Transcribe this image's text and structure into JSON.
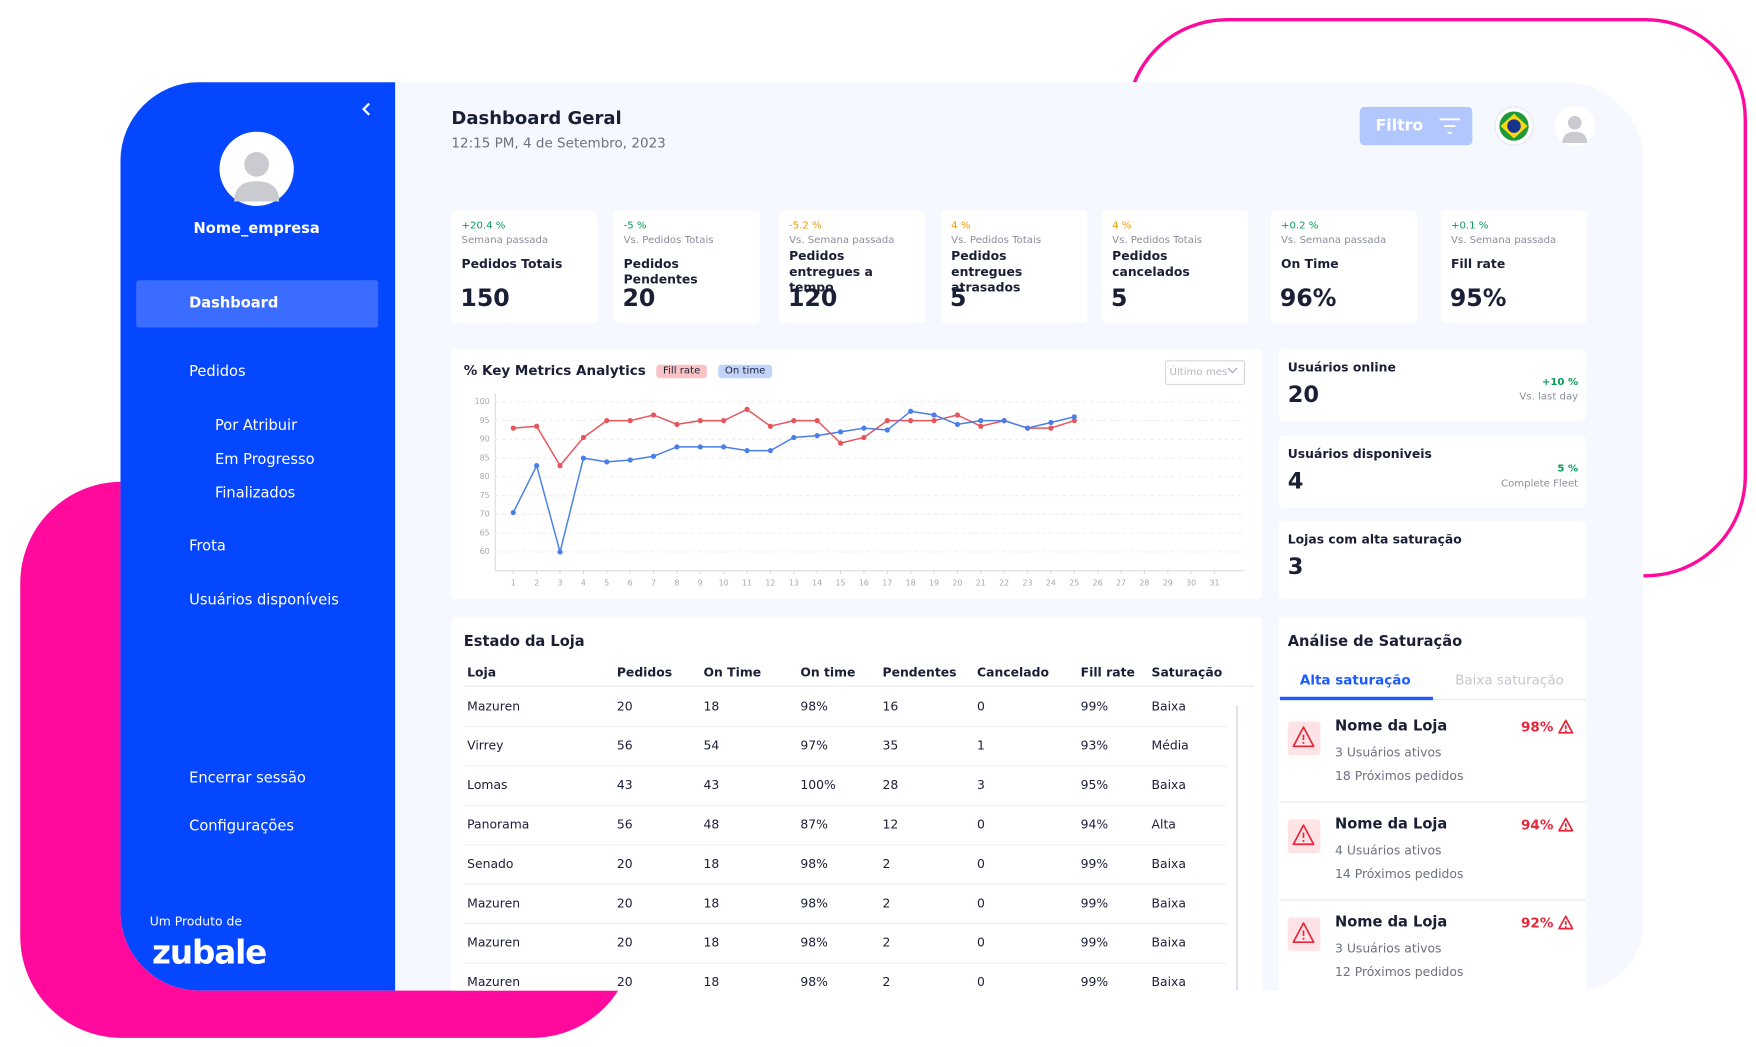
{
  "sidebar": {
    "company": "Nome_empresa",
    "menu": [
      "Dashboard",
      "Pedidos",
      "Por Atribuir",
      "Em Progresso",
      "Finalizados",
      "Frota",
      "Usuários disponíveis"
    ],
    "footer_menu": [
      "Encerrar sessão",
      "Configurações"
    ],
    "product_label": "Um Produto de",
    "brand": "zubale"
  },
  "header": {
    "title": "Dashboard Geral",
    "datetime": "12:15 PM, 4 de Setembro, 2023",
    "filter_button": "Filtro"
  },
  "kpis": [
    {
      "change": "+20.4 %",
      "change_color": "#0a9b5a",
      "compare": "Semana passada",
      "label": "Pedidos Totais",
      "value": "150"
    },
    {
      "change": "-5 %",
      "change_color": "#0a9b5a",
      "compare": "Vs. Pedidos Totais",
      "label": "Pedidos Pendentes",
      "value": "20"
    },
    {
      "change": "-5.2 %",
      "change_color": "#f29a00",
      "compare": "Vs. Semana passada",
      "label": "Pedidos entregues a tempo",
      "value": "120"
    },
    {
      "change": "4 %",
      "change_color": "#f29a00",
      "compare": "Vs. Pedidos Totais",
      "label": "Pedidos entregues atrasados",
      "value": "5"
    },
    {
      "change": "4 %",
      "change_color": "#f29a00",
      "compare": "Vs. Pedidos Totais",
      "label": "Pedidos cancelados",
      "value": "5"
    },
    {
      "change": "+0.2 %",
      "change_color": "#0a9b5a",
      "compare": "Vs. Semana passada",
      "label": "On Time",
      "value": "96%"
    },
    {
      "change": "+0.1 %",
      "change_color": "#0a9b5a",
      "compare": "Vs. Semana passada",
      "label": "Fill rate",
      "value": "95%"
    }
  ],
  "chart_data": {
    "type": "line",
    "title": "% Key Metrics Analytics",
    "x": [
      1,
      2,
      3,
      4,
      5,
      6,
      7,
      8,
      9,
      10,
      11,
      12,
      13,
      14,
      15,
      16,
      17,
      18,
      19,
      20,
      21,
      22,
      23,
      24,
      25,
      26,
      27,
      28,
      29,
      30,
      31
    ],
    "xlim": [
      1,
      31
    ],
    "xticks": [
      1,
      2,
      3,
      4,
      5,
      6,
      7,
      8,
      9,
      10,
      11,
      12,
      13,
      14,
      15,
      16,
      17,
      18,
      19,
      20,
      21,
      22,
      23,
      24,
      25,
      26,
      27,
      28,
      29,
      30,
      31
    ],
    "ylim": [
      55,
      100
    ],
    "yticks": [
      60,
      65,
      70,
      75,
      80,
      85,
      90,
      95,
      100
    ],
    "grid": true,
    "series": [
      {
        "name": "Fill rate",
        "color": "#e8545c",
        "legend_bg": "#f9c3c6",
        "values": [
          93,
          93.5,
          83,
          90.5,
          95,
          95,
          96.5,
          94,
          95,
          95,
          98,
          93.5,
          95,
          95,
          89,
          90.5,
          95,
          95,
          95,
          96.5,
          93.5,
          95,
          93,
          93,
          95,
          null,
          null,
          null,
          null,
          null,
          null
        ]
      },
      {
        "name": "On time",
        "color": "#4a7ee8",
        "legend_bg": "#c3d4fa",
        "values": [
          70.5,
          83,
          60,
          85,
          84,
          84.5,
          85.5,
          88,
          88,
          88,
          87,
          87,
          90.5,
          91,
          92,
          93,
          92.5,
          97.5,
          96.5,
          94,
          95,
          95,
          93,
          94.5,
          96,
          null,
          null,
          null,
          null,
          null,
          null
        ]
      }
    ]
  },
  "chart_controls": {
    "period": "Último mes"
  },
  "side_stats": [
    {
      "label": "Usuários online",
      "value": "20",
      "change": "+10 %",
      "compare": "Vs. last day"
    },
    {
      "label": "Usuários disponiveis",
      "value": "4",
      "change": "5 %",
      "compare": "Complete Fleet"
    },
    {
      "label": "Lojas com alta saturação",
      "value": "3"
    }
  ],
  "table": {
    "title": "Estado da Loja",
    "columns": [
      "Loja",
      "Pedidos",
      "On Time",
      "On time",
      "Pendentes",
      "Cancelado",
      "Fill rate",
      "Saturação"
    ],
    "rows": [
      [
        "Mazuren",
        "20",
        "18",
        "98%",
        "16",
        "0",
        "99%",
        "Baixa"
      ],
      [
        "Virrey",
        "56",
        "54",
        "97%",
        "35",
        "1",
        "93%",
        "Média"
      ],
      [
        "Lomas",
        "43",
        "43",
        "100%",
        "28",
        "3",
        "95%",
        "Baixa"
      ],
      [
        "Panorama",
        "56",
        "48",
        "87%",
        "12",
        "0",
        "94%",
        "Alta"
      ],
      [
        "Senado",
        "20",
        "18",
        "98%",
        "2",
        "0",
        "99%",
        "Baixa"
      ],
      [
        "Mazuren",
        "20",
        "18",
        "98%",
        "2",
        "0",
        "99%",
        "Baixa"
      ],
      [
        "Mazuren",
        "20",
        "18",
        "98%",
        "2",
        "0",
        "99%",
        "Baixa"
      ],
      [
        "Mazuren",
        "20",
        "18",
        "98%",
        "2",
        "0",
        "99%",
        "Baixa"
      ]
    ]
  },
  "saturation": {
    "title": "Análise de Saturação",
    "tabs": [
      "Alta saturação",
      "Baixa saturação"
    ],
    "items": [
      {
        "name": "Nome da Loja",
        "percent": "98%",
        "users": "3 Usuários ativos",
        "orders": "18 Próximos pedidos"
      },
      {
        "name": "Nome da Loja",
        "percent": "94%",
        "users": "4 Usuários ativos",
        "orders": "14 Próximos pedidos"
      },
      {
        "name": "Nome da Loja",
        "percent": "92%",
        "users": "3 Usuários ativos",
        "orders": "12 Próximos pedidos"
      }
    ]
  }
}
